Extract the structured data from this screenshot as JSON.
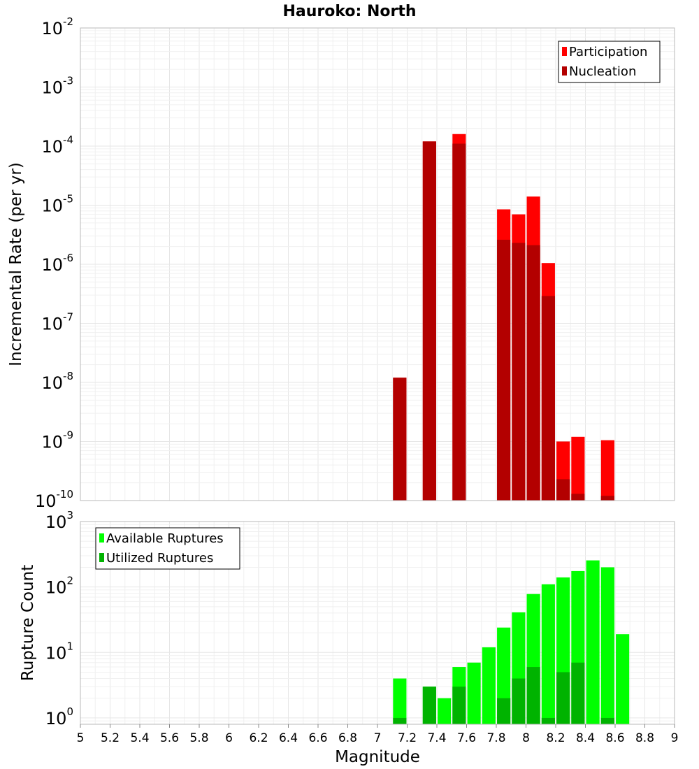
{
  "title": "Hauroko: North",
  "xlabel": "Magnitude",
  "x_ticks": [
    "5",
    "5.2",
    "5.4",
    "5.6",
    "5.8",
    "6",
    "6.2",
    "6.4",
    "6.6",
    "6.8",
    "7",
    "7.2",
    "7.4",
    "7.6",
    "7.8",
    "8",
    "8.2",
    "8.4",
    "8.6",
    "8.8",
    "9"
  ],
  "chart_data": [
    {
      "type": "bar",
      "scale": "log",
      "ylabel": "Incremental Rate (per yr)",
      "xlim": [
        5,
        9
      ],
      "ylim": [
        1e-10,
        0.01
      ],
      "y_ticks": [
        {
          "value": 0.01,
          "base": "10",
          "exp": "-2"
        },
        {
          "value": 0.001,
          "base": "10",
          "exp": "-3"
        },
        {
          "value": 0.0001,
          "base": "10",
          "exp": "-4"
        },
        {
          "value": 1e-05,
          "base": "10",
          "exp": "-5"
        },
        {
          "value": 1e-06,
          "base": "10",
          "exp": "-6"
        },
        {
          "value": 1e-07,
          "base": "10",
          "exp": "-7"
        },
        {
          "value": 1e-08,
          "base": "10",
          "exp": "-8"
        },
        {
          "value": 1e-09,
          "base": "10",
          "exp": "-9"
        },
        {
          "value": 1e-10,
          "base": "10",
          "exp": "-10"
        }
      ],
      "grid": true,
      "legend": "top-right",
      "series": [
        {
          "name": "Participation",
          "color": "#ff0000",
          "points": [
            {
              "x": 7.15,
              "y": 1.2e-08
            },
            {
              "x": 7.35,
              "y": 0.00012
            },
            {
              "x": 7.55,
              "y": 0.00016
            },
            {
              "x": 7.85,
              "y": 8.5e-06
            },
            {
              "x": 7.95,
              "y": 7e-06
            },
            {
              "x": 8.05,
              "y": 1.4e-05
            },
            {
              "x": 8.15,
              "y": 1.05e-06
            },
            {
              "x": 8.25,
              "y": 1e-09
            },
            {
              "x": 8.35,
              "y": 1.2e-09
            },
            {
              "x": 8.55,
              "y": 1.05e-09
            }
          ]
        },
        {
          "name": "Nucleation",
          "color": "#b30000",
          "points": [
            {
              "x": 7.15,
              "y": 1.2e-08
            },
            {
              "x": 7.35,
              "y": 0.00012
            },
            {
              "x": 7.55,
              "y": 0.00011
            },
            {
              "x": 7.85,
              "y": 2.6e-06
            },
            {
              "x": 7.95,
              "y": 2.3e-06
            },
            {
              "x": 8.05,
              "y": 2.1e-06
            },
            {
              "x": 8.15,
              "y": 2.9e-07
            },
            {
              "x": 8.25,
              "y": 2.3e-10
            },
            {
              "x": 8.35,
              "y": 1.3e-10
            },
            {
              "x": 8.55,
              "y": 1.2e-10
            }
          ]
        }
      ]
    },
    {
      "type": "bar",
      "scale": "log",
      "ylabel": "Rupture Count",
      "xlim": [
        5,
        9
      ],
      "ylim": [
        0.8,
        1000
      ],
      "y_ticks": [
        {
          "value": 1000,
          "base": "10",
          "exp": "3"
        },
        {
          "value": 100,
          "base": "10",
          "exp": "2"
        },
        {
          "value": 10,
          "base": "10",
          "exp": "1"
        },
        {
          "value": 1,
          "base": "10",
          "exp": "0"
        }
      ],
      "grid": true,
      "legend": "top-left",
      "series": [
        {
          "name": "Available Ruptures",
          "color": "#00ff00",
          "points": [
            {
              "x": 7.15,
              "y": 4
            },
            {
              "x": 7.35,
              "y": 3
            },
            {
              "x": 7.45,
              "y": 2
            },
            {
              "x": 7.55,
              "y": 6
            },
            {
              "x": 7.65,
              "y": 7
            },
            {
              "x": 7.75,
              "y": 12
            },
            {
              "x": 7.85,
              "y": 24
            },
            {
              "x": 7.95,
              "y": 41
            },
            {
              "x": 8.05,
              "y": 78
            },
            {
              "x": 8.15,
              "y": 110
            },
            {
              "x": 8.25,
              "y": 140
            },
            {
              "x": 8.35,
              "y": 175
            },
            {
              "x": 8.45,
              "y": 255
            },
            {
              "x": 8.55,
              "y": 200
            },
            {
              "x": 8.65,
              "y": 19
            }
          ]
        },
        {
          "name": "Utilized Ruptures",
          "color": "#00b300",
          "points": [
            {
              "x": 7.15,
              "y": 1
            },
            {
              "x": 7.35,
              "y": 3
            },
            {
              "x": 7.55,
              "y": 3
            },
            {
              "x": 7.85,
              "y": 2
            },
            {
              "x": 7.95,
              "y": 4
            },
            {
              "x": 8.05,
              "y": 6
            },
            {
              "x": 8.15,
              "y": 1
            },
            {
              "x": 8.25,
              "y": 5
            },
            {
              "x": 8.35,
              "y": 7
            },
            {
              "x": 8.55,
              "y": 1
            }
          ]
        }
      ]
    }
  ]
}
